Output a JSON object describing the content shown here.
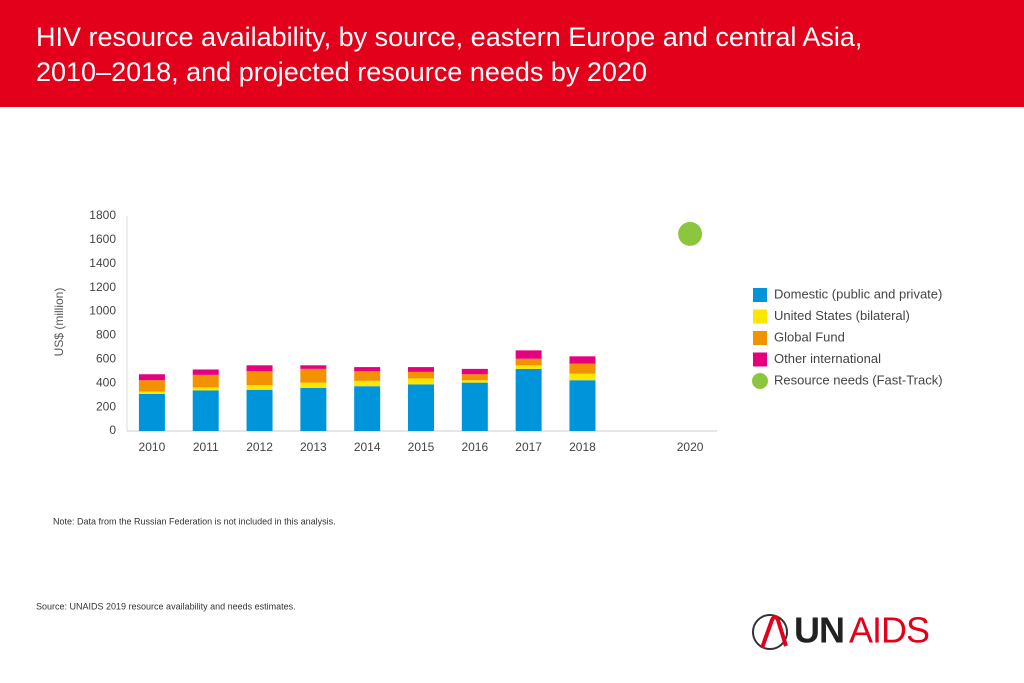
{
  "header": {
    "title_lines": [
      "HIV resource availability, by source, eastern Europe and central Asia,",
      "2010–2018, and projected resource needs by 2020"
    ]
  },
  "chart_data": {
    "type": "bar",
    "stacked": true,
    "y_label": "US$ (million)",
    "categories": [
      "2010",
      "2011",
      "2012",
      "2013",
      "2014",
      "2015",
      "2016",
      "2017",
      "2018",
      null,
      "2020"
    ],
    "series": [
      {
        "name": "Domestic (public and private)",
        "color": "#0095db",
        "values": [
          310,
          340,
          345,
          360,
          375,
          390,
          405,
          520,
          425,
          null,
          null
        ]
      },
      {
        "name": "United States (bilateral)",
        "color": "#ffe600",
        "values": [
          20,
          25,
          40,
          45,
          45,
          50,
          20,
          30,
          55,
          null,
          null
        ]
      },
      {
        "name": "Global Fund",
        "color": "#f39200",
        "values": [
          95,
          105,
          115,
          115,
          80,
          55,
          50,
          55,
          85,
          null,
          null
        ]
      },
      {
        "name": "Other international",
        "color": "#e5007d",
        "values": [
          50,
          45,
          50,
          30,
          35,
          40,
          45,
          70,
          60,
          null,
          null
        ]
      },
      {
        "name": "Resource needs (Fast-Track)",
        "color": "#8cc63f",
        "type": "scatter",
        "values": [
          null,
          null,
          null,
          null,
          null,
          null,
          null,
          null,
          null,
          null,
          1650
        ]
      }
    ],
    "ylim": [
      0,
      1800
    ],
    "yticks": [
      0,
      200,
      400,
      600,
      800,
      1000,
      1200,
      1400,
      1600,
      1800
    ],
    "grid": false,
    "legend": "right"
  },
  "note": "Note: Data from the Russian Federation is not included in this analysis.",
  "source": "Source: UNAIDS 2019 resource availability and needs estimates.",
  "logo": {
    "un": "UN",
    "aids": "AIDS"
  }
}
